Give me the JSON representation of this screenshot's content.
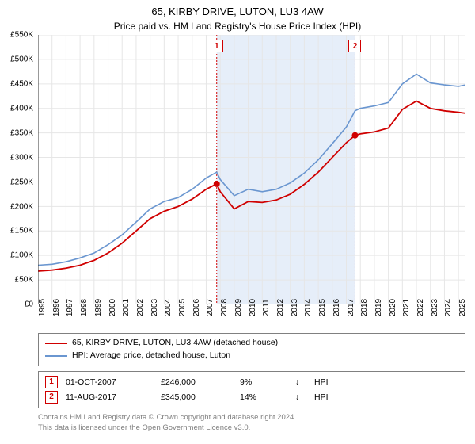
{
  "title_line1": "65, KIRBY DRIVE, LUTON, LU3 4AW",
  "title_line2": "Price paid vs. HM Land Registry's House Price Index (HPI)",
  "chart": {
    "type": "line",
    "xlim_years": [
      1995,
      2025.5
    ],
    "ylim": [
      0,
      550000
    ],
    "ytick_step": 50000,
    "ylabels": [
      "£0",
      "£50K",
      "£100K",
      "£150K",
      "£200K",
      "£250K",
      "£300K",
      "£350K",
      "£400K",
      "£450K",
      "£500K",
      "£550K"
    ],
    "xlabels": [
      "1995",
      "1996",
      "1997",
      "1998",
      "1999",
      "2000",
      "2001",
      "2002",
      "2003",
      "2004",
      "2005",
      "2006",
      "2007",
      "2008",
      "2009",
      "2010",
      "2011",
      "2012",
      "2013",
      "2014",
      "2015",
      "2016",
      "2017",
      "2018",
      "2019",
      "2020",
      "2021",
      "2022",
      "2023",
      "2024",
      "2025"
    ],
    "background_color": "#ffffff",
    "grid_color": "#e6e6e6",
    "shade_color": "#e6eef9",
    "shade_range_years": [
      2007.75,
      2017.62
    ],
    "series": [
      {
        "name": "property",
        "label": "65, KIRBY DRIVE, LUTON, LU3 4AW (detached house)",
        "color": "#d00000",
        "line_width": 1.8,
        "data_years": [
          1995,
          1996,
          1997,
          1998,
          1999,
          2000,
          2001,
          2002,
          2003,
          2004,
          2005,
          2006,
          2007,
          2007.75,
          2008,
          2009,
          2010,
          2011,
          2012,
          2013,
          2014,
          2015,
          2016,
          2017,
          2017.62,
          2018,
          2019,
          2020,
          2021,
          2022,
          2023,
          2024,
          2025,
          2025.5
        ],
        "data_values": [
          68000,
          70000,
          74000,
          80000,
          90000,
          105000,
          125000,
          150000,
          175000,
          190000,
          200000,
          215000,
          235000,
          246000,
          230000,
          195000,
          210000,
          208000,
          213000,
          225000,
          245000,
          270000,
          300000,
          330000,
          345000,
          348000,
          352000,
          360000,
          398000,
          415000,
          400000,
          395000,
          392000,
          390000
        ]
      },
      {
        "name": "hpi",
        "label": "HPI: Average price, detached house, Luton",
        "color": "#6a96d0",
        "line_width": 1.6,
        "data_years": [
          1995,
          1996,
          1997,
          1998,
          1999,
          2000,
          2001,
          2002,
          2003,
          2004,
          2005,
          2006,
          2007,
          2007.75,
          2008,
          2009,
          2010,
          2011,
          2012,
          2013,
          2014,
          2015,
          2016,
          2017,
          2017.62,
          2018,
          2019,
          2020,
          2021,
          2022,
          2023,
          2024,
          2025,
          2025.5
        ],
        "data_values": [
          80000,
          82000,
          87000,
          95000,
          105000,
          122000,
          142000,
          168000,
          195000,
          210000,
          218000,
          235000,
          258000,
          270000,
          255000,
          222000,
          235000,
          230000,
          235000,
          248000,
          268000,
          295000,
          328000,
          362000,
          395000,
          400000,
          405000,
          412000,
          450000,
          470000,
          452000,
          448000,
          445000,
          448000
        ]
      }
    ],
    "markers": [
      {
        "id": "1",
        "year": 2007.75,
        "value": 246000,
        "box_color": "#d00000"
      },
      {
        "id": "2",
        "year": 2017.62,
        "value": 345000,
        "box_color": "#d00000"
      }
    ]
  },
  "legend": {
    "item1_color": "#d00000",
    "item2_color": "#6a96d0"
  },
  "sales": [
    {
      "marker": "1",
      "date": "01-OCT-2007",
      "price": "£246,000",
      "diff": "9%",
      "arrow": "↓",
      "hpi": "HPI"
    },
    {
      "marker": "2",
      "date": "11-AUG-2017",
      "price": "£345,000",
      "diff": "14%",
      "arrow": "↓",
      "hpi": "HPI"
    }
  ],
  "footer": {
    "line1": "Contains HM Land Registry data © Crown copyright and database right 2024.",
    "line2": "This data is licensed under the Open Government Licence v3.0."
  }
}
